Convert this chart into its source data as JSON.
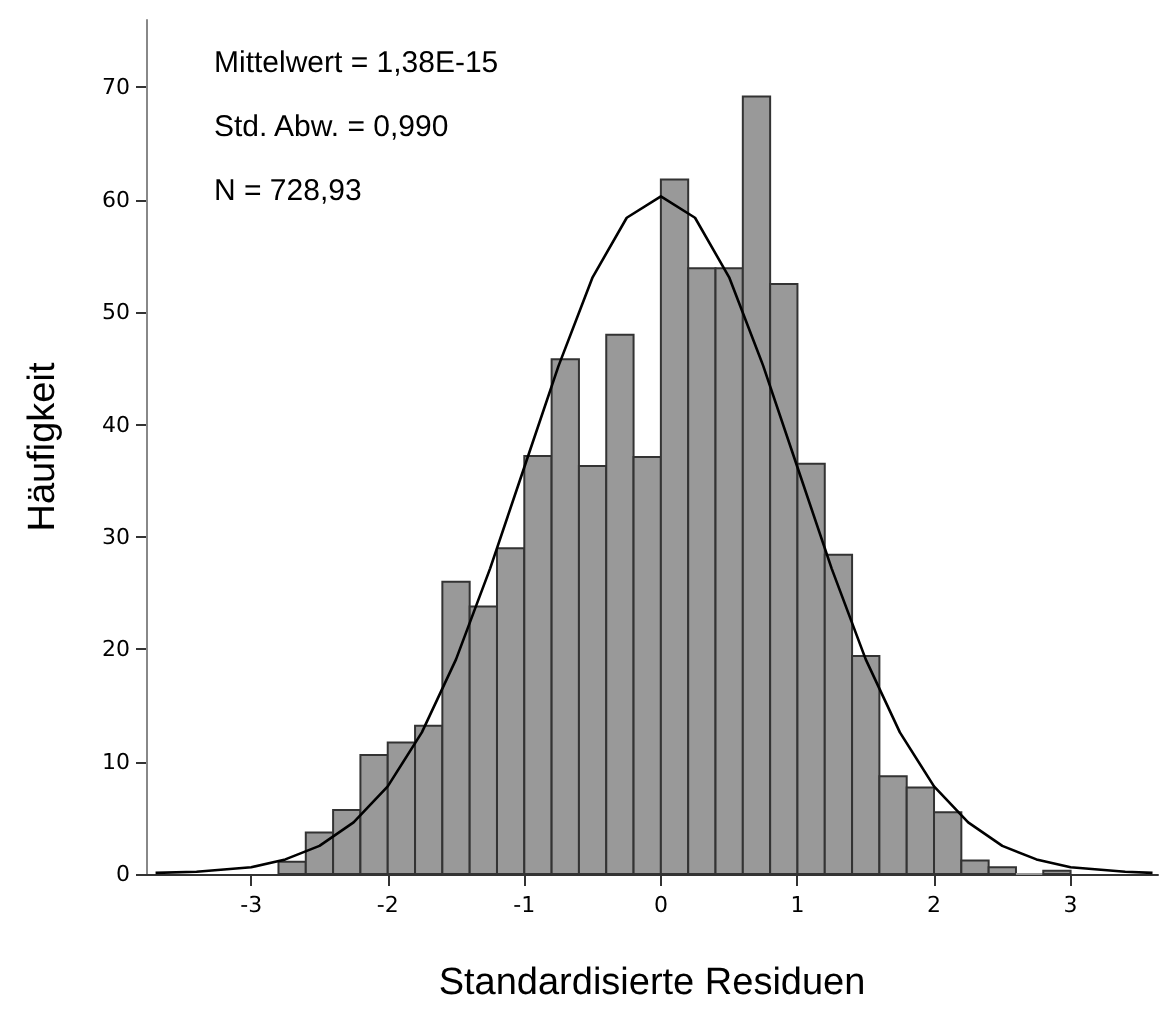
{
  "chart_data": {
    "type": "histogram",
    "xlabel": "Standardisierte Residuen",
    "ylabel": "Häufigkeit",
    "annotations": [
      "Mittelwert = 1,38E-15",
      "Std. Abw. = 0,990",
      "N = 728,93"
    ],
    "bins": [
      -2.8,
      -2.6,
      -2.4,
      -2.2,
      -2.0,
      -1.8,
      -1.6,
      -1.4,
      -1.2,
      -1.0,
      -0.8,
      -0.6,
      -0.4,
      -0.2,
      0,
      0.2,
      0.4,
      0.6,
      0.8,
      1.0,
      1.2,
      1.4,
      1.6,
      1.8,
      2.0,
      2.2,
      2.4,
      2.6,
      2.8,
      3.0
    ],
    "values": [
      1.1,
      3.7,
      5.7,
      10.6,
      11.7,
      13.2,
      26,
      23.8,
      29,
      37.2,
      45.8,
      36.3,
      48,
      37.1,
      61.8,
      53.9,
      53.9,
      69.2,
      52.5,
      36.5,
      28.4,
      19.4,
      8.7,
      7.7,
      5.5,
      1.2,
      0.6,
      0,
      0.3
    ],
    "color": "#999999",
    "series": [
      {
        "type": "line",
        "color": "#000000",
        "marker": "none",
        "line_style": "solid",
        "x": [
          -3.7,
          -3.4,
          -3.0,
          -2.75,
          -2.5,
          -2.25,
          -2.0,
          -1.75,
          -1.5,
          -1.25,
          -1.0,
          -0.75,
          -0.5,
          -0.25,
          0,
          0.25,
          0.5,
          0.75,
          1.0,
          1.25,
          1.5,
          1.75,
          2.0,
          2.25,
          2.5,
          2.75,
          3.0,
          3.4,
          3.6
        ],
        "values": [
          0.1,
          0.2,
          0.6,
          1.3,
          2.5,
          4.6,
          7.8,
          12.6,
          19.1,
          27.2,
          36.2,
          45.2,
          53.1,
          58.4,
          60.3,
          58.4,
          53.1,
          45.2,
          36.2,
          27.2,
          19.1,
          12.6,
          7.8,
          4.6,
          2.5,
          1.3,
          0.6,
          0.2,
          0.1
        ]
      }
    ],
    "xlim": [
      -3.77,
      3.64
    ],
    "xticks": [
      -3,
      -2,
      -1,
      0,
      1,
      2,
      3
    ],
    "ylim": [
      0,
      76
    ],
    "yticks": [
      0,
      10,
      20,
      30,
      40,
      50,
      60,
      70
    ],
    "grid": false
  }
}
